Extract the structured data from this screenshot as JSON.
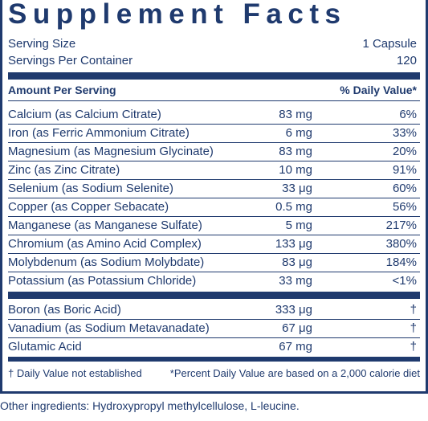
{
  "header": {
    "title": "Supplement Facts",
    "serving_size_label": "Serving Size",
    "serving_size": "1 Capsule",
    "servings_label": "Servings Per Container",
    "servings": "120"
  },
  "table": {
    "columns": [
      "Amount Per Serving",
      "% Daily Value*"
    ],
    "rows": [
      [
        "Calcium (as Calcium Citrate)",
        "83 mg",
        "6%"
      ],
      [
        "Iron (as Ferric Ammonium Citrate)",
        "6 mg",
        "33%"
      ],
      [
        "Magnesium (as Magnesium Glycinate)",
        "83 mg",
        "20%"
      ],
      [
        "Zinc (as Zinc Citrate)",
        "10 mg",
        "91%"
      ],
      [
        "Selenium (as Sodium Selenite)",
        "33 μg",
        "60%"
      ],
      [
        "Copper (as Copper Sebacate)",
        "0.5 mg",
        "56%"
      ],
      [
        "Manganese (as Manganese Sulfate)",
        "5 mg",
        "217%"
      ],
      [
        "Chromium (as Amino Acid Complex)",
        "133 μg",
        "380%"
      ],
      [
        "Molybdenum (as Sodium Molybdate)",
        "83 μg",
        "184%"
      ],
      [
        "Potassium (as Potassium Chloride)",
        "33 mg",
        "<1%"
      ]
    ],
    "rows2": [
      [
        "Boron (as Boric Acid)",
        "333 μg",
        "†"
      ],
      [
        "Vanadium (as Sodium Metavanadate)",
        "67 μg",
        "†"
      ],
      [
        "Glutamic Acid",
        "67 mg",
        "†"
      ]
    ]
  },
  "footnotes": [
    "† Daily Value not established",
    "*Percent Daily Value are based on a 2,000 calorie diet"
  ],
  "other_ingredients": "Other ingredients: Hydroxypropyl methylcellulose, L-leucine."
}
